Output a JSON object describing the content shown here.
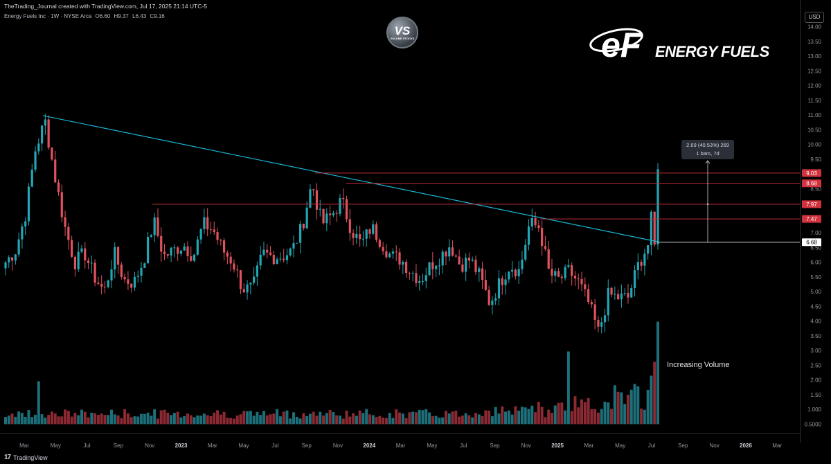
{
  "header": {
    "title": "TheTrading_Journal created with TradingView.com, Jul 17, 2025 21:14 UTC-5"
  },
  "legend": {
    "symbol": "Energy Fuels Inc · 1W · NYSE Arca",
    "open": "O6.60",
    "high": "H9.37",
    "low": "L6.43",
    "close": "C9.16"
  },
  "currency": "USD",
  "footer": {
    "brand": "TradingView"
  },
  "logos": {
    "vs_text": "VS",
    "vs_sub": "VOLUME STOCKS",
    "company_word": "ENERGY FUELS"
  },
  "annotations": {
    "volume_note": "Increasing Volume",
    "measure_line1": "2.69 (40.53%) 269",
    "measure_line2": "1 bars, 7d"
  },
  "colors": {
    "up": "#22a6b3",
    "down": "#e0525e",
    "up_vol": "#1d6f7a",
    "down_vol": "#8c2a33",
    "trendline": "#1ab6d4",
    "level_line": "#c0313b",
    "level_tag": "#d1323e",
    "current_tag": "#ffffff"
  },
  "chart_data": {
    "type": "candlestick",
    "interval": "1W",
    "price_axis": [
      "14.00",
      "13.50",
      "13.00",
      "12.50",
      "12.00",
      "11.50",
      "11.00",
      "10.50",
      "10.00",
      "9.50",
      "9.00",
      "8.50",
      "8.00",
      "7.50",
      "7.00",
      "6.50",
      "6.00",
      "5.50",
      "5.00",
      "4.50",
      "4.00",
      "3.50",
      "3.00",
      "2.50",
      "2.00",
      "1.50",
      "1.000",
      "0.5000"
    ],
    "time_axis": [
      "Mar",
      "May",
      "Jul",
      "Sep",
      "Nov",
      "2023",
      "Mar",
      "May",
      "Jul",
      "Sep",
      "Nov",
      "2024",
      "Mar",
      "May",
      "Jul",
      "Sep",
      "Nov",
      "2025",
      "Mar",
      "May",
      "Jul",
      "Sep",
      "Nov",
      "2026",
      "Mar"
    ],
    "ylim": [
      0.5,
      14.0
    ],
    "levels": [
      {
        "value": 9.03,
        "label": "9.03"
      },
      {
        "value": 8.68,
        "label": "8.68"
      },
      {
        "value": 7.97,
        "label": "7.97"
      },
      {
        "value": 7.47,
        "label": "7.47"
      }
    ],
    "current_level": {
      "value": 6.68,
      "label": "6.68"
    },
    "trendline": {
      "from": [
        "2022-03",
        10.98
      ],
      "to": [
        "2025-07",
        6.7
      ]
    },
    "keypoints": [
      6.0,
      6.4,
      7.6,
      9.8,
      10.8,
      8.9,
      7.2,
      6.0,
      6.3,
      5.5,
      5.0,
      6.3,
      5.4,
      5.3,
      6.1,
      7.4,
      6.2,
      6.4,
      6.6,
      6.2,
      7.3,
      7.1,
      6.4,
      6.0,
      5.1,
      5.1,
      6.3,
      6.2,
      6.2,
      6.4,
      7.2,
      8.7,
      7.3,
      7.6,
      8.1,
      7.1,
      6.6,
      7.2,
      6.7,
      6.2,
      6.1,
      5.7,
      5.4,
      5.9,
      6.2,
      6.6,
      5.9,
      6.1,
      5.5,
      4.6,
      5.3,
      5.9,
      5.7,
      7.3,
      7.2,
      5.6,
      5.4,
      5.7,
      5.3,
      4.6,
      3.6,
      4.9,
      4.8,
      4.8,
      5.9,
      6.6,
      9.16
    ]
  }
}
